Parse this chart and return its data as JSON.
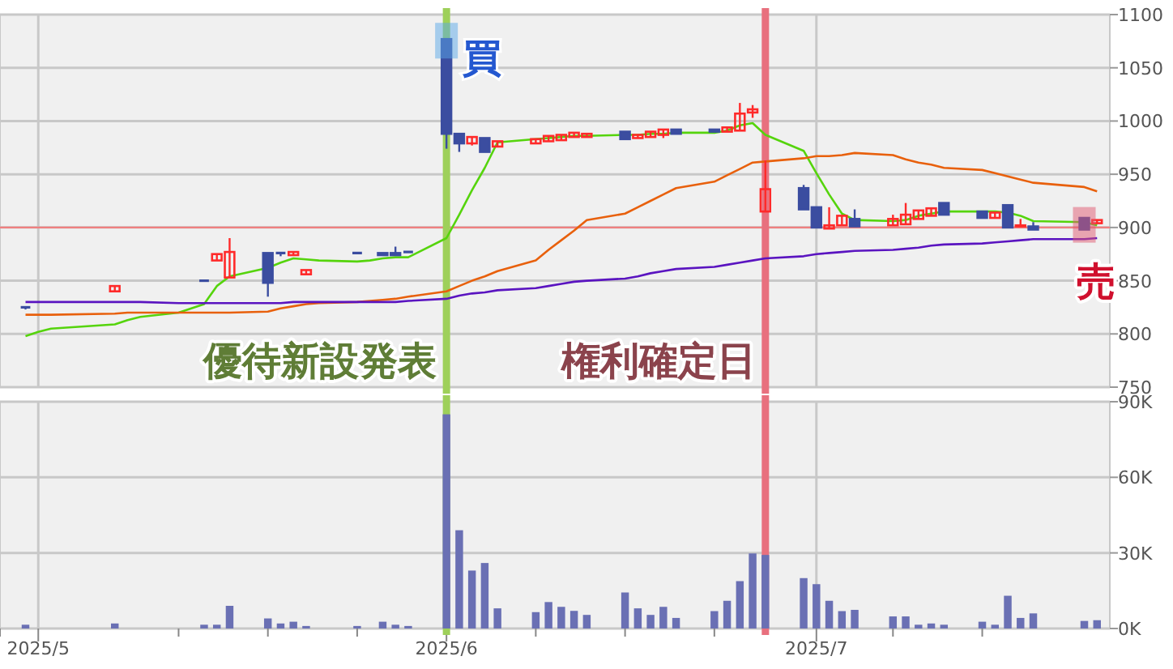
{
  "chart_data": [
    {
      "type": "candlestick",
      "x": [
        "2025-04-30",
        "2025-05-01",
        "2025-05-02",
        "2025-05-07",
        "2025-05-08",
        "2025-05-09",
        "2025-05-12",
        "2025-05-13",
        "2025-05-14",
        "2025-05-15",
        "2025-05-16",
        "2025-05-19",
        "2025-05-20",
        "2025-05-21",
        "2025-05-22",
        "2025-05-23",
        "2025-05-26",
        "2025-05-27",
        "2025-05-28",
        "2025-05-29",
        "2025-05-30",
        "2025-06-02",
        "2025-06-03",
        "2025-06-04",
        "2025-06-05",
        "2025-06-06",
        "2025-06-09",
        "2025-06-10",
        "2025-06-11",
        "2025-06-12",
        "2025-06-13",
        "2025-06-16",
        "2025-06-17",
        "2025-06-18",
        "2025-06-19",
        "2025-06-20",
        "2025-06-23",
        "2025-06-24",
        "2025-06-25",
        "2025-06-26",
        "2025-06-27",
        "2025-06-30",
        "2025-07-01",
        "2025-07-02",
        "2025-07-03",
        "2025-07-04",
        "2025-07-07",
        "2025-07-08",
        "2025-07-09",
        "2025-07-10",
        "2025-07-11",
        "2025-07-14",
        "2025-07-15",
        "2025-07-16",
        "2025-07-17",
        "2025-07-18",
        "2025-07-22",
        "2025-07-23"
      ],
      "ohlc": [
        [
          825,
          826,
          823,
          825
        ],
        null,
        null,
        [
          840,
          845,
          840,
          845
        ],
        null,
        null,
        null,
        null,
        [
          850,
          850,
          850,
          850
        ],
        [
          869,
          875,
          869,
          875
        ],
        [
          853,
          890,
          853,
          877
        ],
        [
          876,
          876,
          835,
          848
        ],
        [
          876,
          876,
          873,
          876
        ],
        [
          874,
          877,
          874,
          877
        ],
        [
          856,
          860,
          856,
          860
        ],
        null,
        [
          876,
          876,
          876,
          876
        ],
        null,
        [
          876,
          876,
          874,
          874
        ],
        [
          876,
          882,
          874,
          874
        ],
        [
          877,
          877,
          877,
          877
        ],
        [
          1077,
          1077,
          974,
          988
        ],
        [
          988,
          988,
          971,
          979
        ],
        [
          979,
          985,
          977,
          985
        ],
        [
          984,
          984,
          971,
          971
        ],
        [
          976,
          981,
          976,
          981
        ],
        [
          979,
          983,
          979,
          983
        ],
        [
          981,
          986,
          981,
          986
        ],
        [
          982,
          987,
          982,
          987
        ],
        [
          985,
          989,
          985,
          989
        ],
        [
          985,
          988,
          985,
          988
        ],
        [
          990,
          990,
          983,
          983
        ],
        [
          984,
          987,
          984,
          987
        ],
        [
          985,
          990,
          985,
          990
        ],
        [
          987,
          992,
          984,
          992
        ],
        [
          992,
          992,
          988,
          988
        ],
        [
          992,
          992,
          990,
          990
        ],
        [
          990,
          994,
          990,
          994
        ],
        [
          991,
          1017,
          991,
          1007
        ],
        [
          1008,
          1015,
          1003,
          1011
        ],
        [
          915,
          963,
          915,
          936
        ],
        [
          937,
          940,
          917,
          917
        ],
        [
          919,
          919,
          900,
          900
        ],
        [
          899,
          919,
          899,
          902
        ],
        [
          902,
          911,
          902,
          911
        ],
        [
          908,
          917,
          901,
          901
        ],
        [
          902,
          912,
          902,
          908
        ],
        [
          903,
          923,
          903,
          912
        ],
        [
          908,
          916,
          908,
          916
        ],
        [
          911,
          918,
          911,
          918
        ],
        [
          923,
          923,
          912,
          912
        ],
        [
          915,
          915,
          909,
          909
        ],
        [
          909,
          914,
          909,
          914
        ],
        [
          921,
          921,
          900,
          900
        ],
        [
          901,
          908,
          901,
          902
        ],
        [
          901,
          905,
          898,
          898
        ],
        [
          909,
          909,
          898,
          898
        ],
        [
          904,
          907,
          904,
          907
        ]
      ],
      "series": [
        {
          "type": "line",
          "color": "#55d40c",
          "values": [
            798,
            802,
            805,
            809,
            813,
            816,
            820,
            824,
            828,
            845,
            854,
            862,
            867,
            871,
            870,
            869,
            868,
            869,
            871,
            872,
            872,
            890,
            912,
            935,
            956,
            980,
            983,
            984,
            985,
            986,
            986,
            987,
            987,
            988,
            988,
            989,
            989,
            991,
            996,
            998,
            987,
            972,
            951,
            931,
            913,
            907,
            906,
            907,
            911,
            913,
            915,
            915,
            915,
            914,
            911,
            906,
            905,
            902
          ]
        },
        {
          "type": "line",
          "color": "#e8600c",
          "values": [
            818,
            818,
            818,
            819,
            820,
            820,
            820,
            820,
            820,
            820,
            820,
            821,
            824,
            826,
            828,
            829,
            830,
            831,
            832,
            833,
            835,
            840,
            845,
            850,
            854,
            859,
            869,
            879,
            888,
            897,
            907,
            913,
            919,
            925,
            931,
            937,
            943,
            949,
            955,
            961,
            962,
            965,
            967,
            967,
            968,
            970,
            968,
            964,
            961,
            959,
            956,
            954,
            951,
            948,
            945,
            942,
            938,
            934
          ]
        },
        {
          "type": "line",
          "color": "#5a14c0",
          "values": [
            830,
            830,
            830,
            830,
            830,
            830,
            829,
            829,
            829,
            829,
            829,
            829,
            829,
            830,
            830,
            830,
            830,
            830,
            830,
            830,
            831,
            833,
            836,
            838,
            839,
            841,
            843,
            845,
            847,
            849,
            850,
            852,
            854,
            857,
            859,
            861,
            863,
            865,
            867,
            869,
            871,
            873,
            875,
            876,
            877,
            878,
            879,
            880,
            881,
            883,
            884,
            885,
            886,
            887,
            888,
            889,
            889,
            890
          ]
        }
      ],
      "xlim": [
        "2025-04-28",
        "2025-07-24"
      ],
      "xticks": [
        {
          "value": "2025-05-01",
          "label": null
        },
        {
          "value": "2025-06-02",
          "label": null
        },
        {
          "value": "2025-07-01",
          "label": null
        }
      ],
      "ylim": [
        750,
        1100
      ],
      "yticks": [
        750,
        800,
        850,
        900,
        950,
        1000,
        1050,
        1100
      ],
      "tick_labels": "y",
      "grid": true,
      "ref_lines": [
        {
          "axis": "y",
          "value": 900,
          "label": null,
          "color": "#f08080"
        },
        {
          "axis": "x",
          "value": "2025-06-02",
          "label": "優待新設発表",
          "color": "#9ed05a"
        },
        {
          "axis": "x",
          "value": "2025-06-27",
          "label": "権利確定日",
          "color": "#e8707e"
        }
      ],
      "annotations": [
        {
          "text": "買",
          "x": "2025-06-02",
          "y": 1077
        },
        {
          "text": "売",
          "x": "2025-07-22",
          "y": 904
        }
      ]
    },
    {
      "type": "bar",
      "x": [
        "2025-04-30",
        "2025-05-07",
        "2025-05-14",
        "2025-05-15",
        "2025-05-16",
        "2025-05-19",
        "2025-05-20",
        "2025-05-21",
        "2025-05-22",
        "2025-05-26",
        "2025-05-28",
        "2025-05-29",
        "2025-05-30",
        "2025-06-02",
        "2025-06-03",
        "2025-06-04",
        "2025-06-05",
        "2025-06-06",
        "2025-06-09",
        "2025-06-10",
        "2025-06-11",
        "2025-06-12",
        "2025-06-13",
        "2025-06-16",
        "2025-06-17",
        "2025-06-18",
        "2025-06-19",
        "2025-06-20",
        "2025-06-23",
        "2025-06-24",
        "2025-06-25",
        "2025-06-26",
        "2025-06-27",
        "2025-06-30",
        "2025-07-01",
        "2025-07-02",
        "2025-07-03",
        "2025-07-04",
        "2025-07-07",
        "2025-07-08",
        "2025-07-09",
        "2025-07-10",
        "2025-07-11",
        "2025-07-14",
        "2025-07-15",
        "2025-07-16",
        "2025-07-17",
        "2025-07-18",
        "2025-07-22",
        "2025-07-23"
      ],
      "values": [
        1500,
        2000,
        1500,
        1500,
        9000,
        4000,
        2000,
        2700,
        1000,
        1000,
        2700,
        1500,
        1000,
        85000,
        39000,
        23000,
        26000,
        8000,
        6500,
        10500,
        8600,
        7000,
        5400,
        14300,
        8000,
        5400,
        8600,
        4200,
        6900,
        11000,
        18800,
        29800,
        29200,
        20000,
        17600,
        11000,
        6900,
        7400,
        4800,
        4800,
        1500,
        2000,
        1500,
        2700,
        1500,
        13000,
        4200,
        6000,
        3000,
        3300
      ],
      "color": "#6a70b4",
      "xlim": [
        "2025-04-28",
        "2025-07-24"
      ],
      "xticks": [
        {
          "value": "2025-04-28",
          "label": null
        },
        {
          "value": "2025-05-01",
          "label": "2025/5"
        },
        {
          "value": "2025-05-12",
          "label": null
        },
        {
          "value": "2025-05-19",
          "label": null
        },
        {
          "value": "2025-05-26",
          "label": null
        },
        {
          "value": "2025-06-02",
          "label": "2025/6"
        },
        {
          "value": "2025-06-09",
          "label": null
        },
        {
          "value": "2025-06-16",
          "label": null
        },
        {
          "value": "2025-06-23",
          "label": null
        },
        {
          "value": "2025-07-01",
          "label": "2025/7"
        },
        {
          "value": "2025-07-07",
          "label": null
        },
        {
          "value": "2025-07-14",
          "label": null
        }
      ],
      "ylim": [
        0,
        90000
      ],
      "yticks": [
        {
          "value": 0,
          "label": "0K"
        },
        {
          "value": 30000,
          "label": "30K"
        },
        {
          "value": 60000,
          "label": "60K"
        },
        {
          "value": 90000,
          "label": "90K"
        }
      ],
      "grid": true,
      "ref_lines": [
        {
          "axis": "x",
          "value": "2025-06-02",
          "label": null,
          "color": "#9ed05a"
        },
        {
          "axis": "x",
          "value": "2025-06-27",
          "label": null,
          "color": "#e8707e"
        }
      ]
    }
  ]
}
